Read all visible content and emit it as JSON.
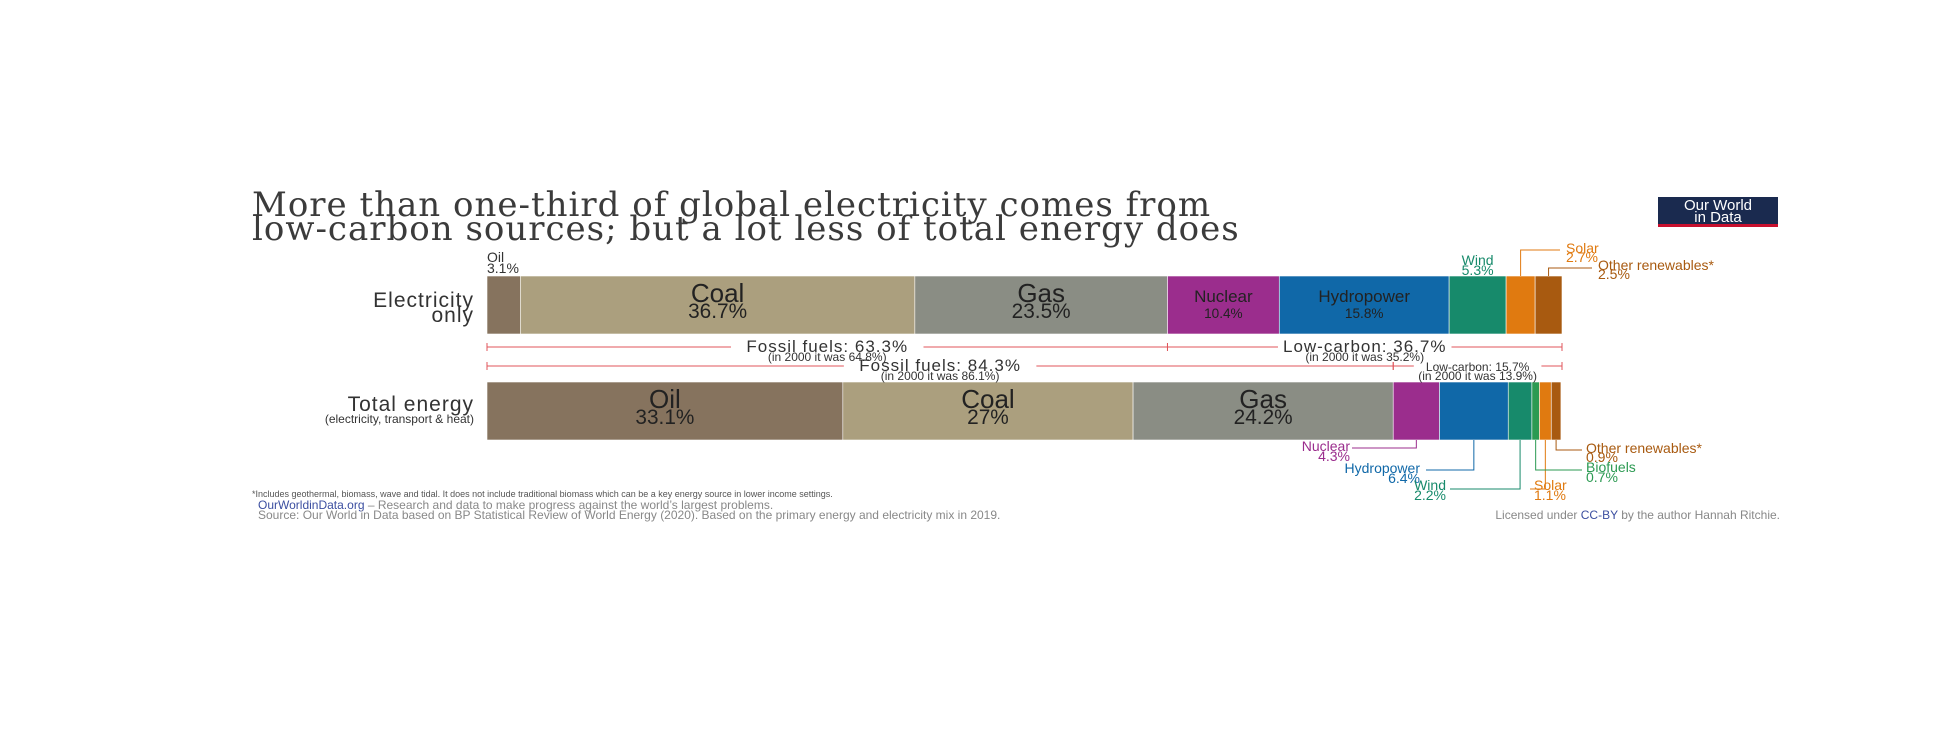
{
  "title": {
    "line1": "More than one-third of global electricity comes from",
    "line2": "low-carbon sources; but a lot less of total energy does"
  },
  "logo": {
    "line1": "Our World",
    "line2": "in Data",
    "bg": "#1a2a4f",
    "accent": "#c8102e"
  },
  "chart_data": {
    "type": "bar",
    "orientation": "horizontal",
    "stacked": "percent",
    "categories": [
      "Electricity only",
      "Total energy"
    ],
    "row_labels": [
      {
        "line1": "Electricity",
        "line2": "only"
      },
      {
        "line1": "Total energy",
        "line2": "(electricity, transport & heat)"
      }
    ],
    "series": [
      {
        "name": "Oil",
        "color": "#86735e",
        "values": [
          3.1,
          33.1
        ]
      },
      {
        "name": "Coal",
        "color": "#ab9f7e",
        "values": [
          36.7,
          27
        ]
      },
      {
        "name": "Gas",
        "color": "#8a8d84",
        "values": [
          23.5,
          24.2
        ]
      },
      {
        "name": "Nuclear",
        "color": "#9b2d8d",
        "values": [
          10.4,
          4.3
        ]
      },
      {
        "name": "Hydropower",
        "color": "#1068a8",
        "values": [
          15.8,
          6.4
        ]
      },
      {
        "name": "Wind",
        "color": "#178a6b",
        "values": [
          5.3,
          2.2
        ]
      },
      {
        "name": "Biofuels",
        "color": "#2b9a52",
        "values": [
          null,
          0.7
        ]
      },
      {
        "name": "Solar",
        "color": "#e07a10",
        "values": [
          2.7,
          1.1
        ]
      },
      {
        "name": "Other renewables*",
        "color": "#a85a10",
        "values": [
          2.5,
          0.9
        ]
      }
    ],
    "segment_labels": {
      "electricity": {
        "Oil": "3.1%",
        "Coal": "36.7%",
        "Gas": "23.5%",
        "Nuclear": "10.4%",
        "Hydropower": "15.8%",
        "Wind": "5.3%",
        "Solar": "2.7%",
        "Other renewables*": "2.5%"
      },
      "total": {
        "Oil": "33.1%",
        "Coal": "27%",
        "Gas": "24.2%",
        "Nuclear": "4.3%",
        "Hydropower": "6.4%",
        "Wind": "2.2%",
        "Biofuels": "0.7%",
        "Solar": "1.1%",
        "Other renewables*": "0.9%"
      }
    },
    "groups": {
      "electricity": {
        "fossil": {
          "label": "Fossil fuels: 63.3%",
          "note": "(in 2000 it was 64.8%)"
        },
        "lowcarbon": {
          "label": "Low-carbon: 36.7%",
          "note": "(in 2000 it was 35.2%)"
        }
      },
      "total": {
        "fossil": {
          "label": "Fossil fuels: 84.3%",
          "note": "(in 2000 it was 86.1%)"
        },
        "lowcarbon": {
          "label": "Low-carbon: 15.7%",
          "note": "(in 2000 it was 13.9%)"
        }
      }
    },
    "group_line_color": "#e0565b",
    "xlim": [
      0,
      100
    ]
  },
  "footer": {
    "footnote": "*Includes geothermal, biomass, wave and tidal. It does not include traditional biomass which can be a key energy source in lower income settings.",
    "site": "OurWorldinData.org",
    "tagline": " – Research and data to make progress against the world’s largest problems.",
    "source": "Source: Our World in Data based on BP Statistical Review of World Energy (2020). Based on the primary energy and electricity mix in 2019.",
    "license_pre": "Licensed under ",
    "license_link": "CC-BY",
    "license_post": " by the author Hannah Ritchie."
  }
}
